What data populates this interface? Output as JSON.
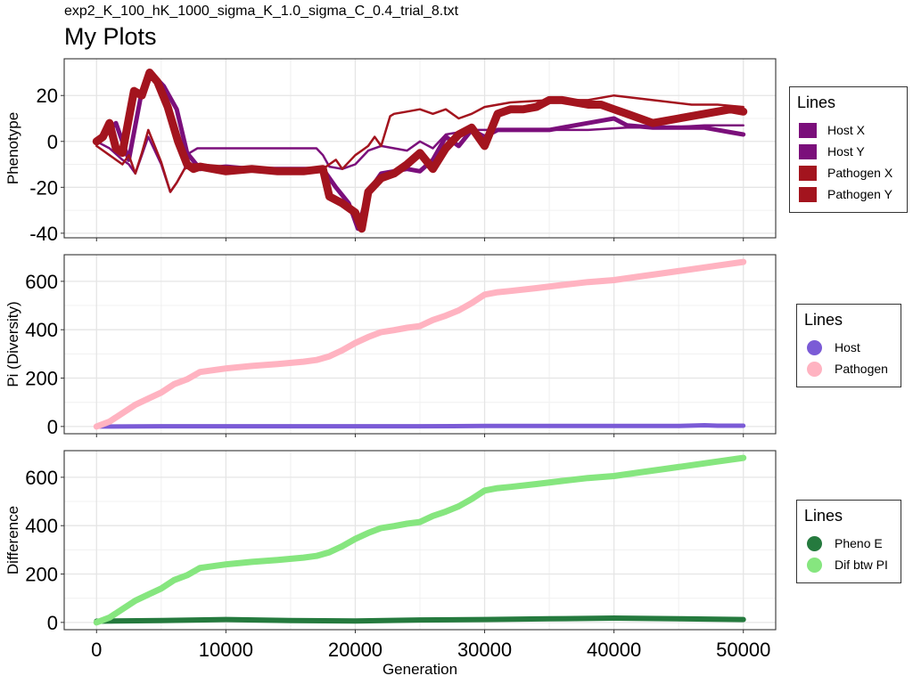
{
  "header": {
    "filename": "exp2_K_100_hK_1000_sigma_K_1.0_sigma_C_0.4_trial_8.txt",
    "title": "My Plots"
  },
  "chart_data": [
    {
      "type": "line",
      "ylabel": "Phenotype",
      "xlabel": "",
      "xlim": [
        -2500,
        52500
      ],
      "ylim": [
        -42,
        36
      ],
      "yticks": [
        -40,
        -20,
        0,
        20
      ],
      "xticks": [
        0,
        10000,
        20000,
        30000,
        40000,
        50000
      ],
      "grid": true,
      "legend": {
        "title": "Lines",
        "position": "right"
      },
      "series": [
        {
          "name": "Host X",
          "color": "#7b0f7b",
          "width": 5,
          "x": [
            0,
            700,
            1500,
            2500,
            3500,
            4200,
            5200,
            6200,
            7000,
            8000,
            10000,
            12000,
            14000,
            16000,
            17500,
            18500,
            19500,
            20200,
            21000,
            22000,
            23000,
            24000,
            25000,
            26000,
            27000,
            28000,
            29000,
            30000,
            31000,
            33000,
            35000,
            37000,
            39000,
            40000,
            41000,
            43000,
            45000,
            46000,
            47000,
            48000,
            49000,
            50000
          ],
          "y": [
            0,
            3,
            8,
            -8,
            22,
            30,
            24,
            14,
            -5,
            -12,
            -11,
            -12,
            -12,
            -12,
            -12,
            -20,
            -27,
            -38,
            -22,
            -14,
            -13,
            -12,
            -13,
            -8,
            2,
            -2,
            5,
            2,
            5,
            5,
            5,
            7,
            9,
            10,
            7,
            6,
            6,
            6,
            6,
            5,
            4,
            3
          ]
        },
        {
          "name": "Host Y",
          "color": "#7b0f7b",
          "width": 2.5,
          "x": [
            0,
            1000,
            2000,
            2500,
            3000,
            3500,
            4000,
            5000,
            5700,
            6200,
            6800,
            7200,
            7800,
            8000,
            10000,
            13000,
            17000,
            17500,
            18000,
            19000,
            20000,
            21000,
            22000,
            23000,
            24000,
            25000,
            26000,
            27000,
            28000,
            29000,
            30000,
            32000,
            35000,
            38000,
            41000,
            44000,
            47000,
            50000
          ],
          "y": [
            0,
            -3,
            -8,
            -10,
            -14,
            -6,
            2,
            -10,
            -22,
            -18,
            -12,
            -5,
            -3,
            -3,
            -3,
            -3,
            -3,
            -6,
            -11,
            -12,
            -10,
            -4,
            -2,
            -3,
            -4,
            0,
            -3,
            3,
            4,
            5,
            5,
            5,
            5,
            5,
            6,
            6,
            7,
            7
          ]
        },
        {
          "name": "Pathogen X",
          "color": "#a3141e",
          "width": 9,
          "x": [
            0,
            500,
            1000,
            1500,
            2000,
            2500,
            2900,
            3500,
            4100,
            4700,
            5500,
            6300,
            7000,
            7500,
            8000,
            10000,
            12000,
            14000,
            16000,
            17500,
            18000,
            19000,
            20000,
            20500,
            21000,
            22000,
            23000,
            24000,
            25000,
            26000,
            27000,
            28000,
            29000,
            30000,
            31000,
            32000,
            33000,
            34000,
            35000,
            36000,
            37000,
            38000,
            39000,
            40000,
            41000,
            42000,
            43000,
            45000,
            47000,
            49000,
            50000
          ],
          "y": [
            0,
            2,
            8,
            -3,
            -5,
            10,
            22,
            20,
            30,
            26,
            15,
            0,
            -10,
            -12,
            -11,
            -13,
            -12,
            -13,
            -13,
            -12,
            -24,
            -27,
            -31,
            -38,
            -22,
            -16,
            -14,
            -10,
            -5,
            -12,
            -3,
            3,
            6,
            -2,
            12,
            14,
            14,
            15,
            18,
            18,
            17,
            16,
            16,
            14,
            12,
            10,
            8,
            10,
            12,
            14,
            13
          ]
        },
        {
          "name": "Pathogen Y",
          "color": "#a3141e",
          "width": 2.5,
          "x": [
            0,
            1000,
            2000,
            2500,
            3000,
            3500,
            4000,
            5000,
            5700,
            6200,
            6800,
            7500,
            8000,
            10000,
            14000,
            17500,
            18500,
            19000,
            20000,
            20500,
            21000,
            21500,
            22000,
            22700,
            23000,
            24000,
            25000,
            26000,
            27000,
            28000,
            29000,
            30000,
            32000,
            35000,
            38000,
            40000,
            43000,
            46000,
            48000,
            50000
          ],
          "y": [
            -2,
            -6,
            -10,
            -6,
            -14,
            -5,
            5,
            -9,
            -22,
            -18,
            -12,
            -10,
            -10,
            -11,
            -12,
            -12,
            -8,
            -12,
            -6,
            -4,
            -2,
            2,
            -2,
            11,
            12,
            13,
            14,
            12,
            14,
            10,
            12,
            15,
            17,
            18,
            18,
            20,
            18,
            16,
            16,
            15
          ]
        }
      ]
    },
    {
      "type": "line",
      "ylabel": "Pi (Diversity)",
      "xlabel": "",
      "xlim": [
        -2500,
        52500
      ],
      "ylim": [
        -30,
        710
      ],
      "yticks": [
        0,
        200,
        400,
        600
      ],
      "xticks": [
        0,
        10000,
        20000,
        30000,
        40000,
        50000
      ],
      "grid": true,
      "legend": {
        "title": "Lines",
        "position": "right"
      },
      "series": [
        {
          "name": "Host",
          "color": "#7b5bd6",
          "width": 5,
          "x": [
            0,
            5000,
            10000,
            15000,
            20000,
            25000,
            30000,
            35000,
            40000,
            45000,
            47000,
            48000,
            50000
          ],
          "y": [
            0,
            1,
            1,
            1,
            1,
            1,
            2,
            2,
            2,
            2,
            5,
            3,
            3
          ]
        },
        {
          "name": "Pathogen",
          "color": "#ffb3c1",
          "width": 7,
          "x": [
            0,
            1000,
            2000,
            3000,
            4000,
            5000,
            6000,
            7000,
            8000,
            10000,
            12000,
            14000,
            16000,
            17000,
            18000,
            19000,
            20000,
            21000,
            22000,
            23000,
            24000,
            25000,
            26000,
            27000,
            28000,
            29000,
            30000,
            31000,
            32000,
            34000,
            36000,
            38000,
            40000,
            42000,
            44000,
            46000,
            48000,
            50000
          ],
          "y": [
            0,
            20,
            55,
            90,
            115,
            140,
            175,
            195,
            225,
            240,
            250,
            258,
            268,
            275,
            290,
            315,
            345,
            370,
            390,
            398,
            408,
            415,
            440,
            458,
            480,
            510,
            545,
            555,
            560,
            572,
            585,
            597,
            605,
            620,
            635,
            650,
            665,
            680
          ]
        }
      ]
    },
    {
      "type": "line",
      "ylabel": "Difference",
      "xlabel": "Generation",
      "xlim": [
        -2500,
        52500
      ],
      "ylim": [
        -30,
        710
      ],
      "yticks": [
        0,
        200,
        400,
        600
      ],
      "xticks": [
        0,
        10000,
        20000,
        30000,
        40000,
        50000
      ],
      "xtick_labels": [
        "0",
        "10000",
        "20000",
        "30000",
        "40000",
        "50000"
      ],
      "grid": true,
      "legend": {
        "title": "Lines",
        "position": "right"
      },
      "series": [
        {
          "name": "Pheno E",
          "color": "#257a3e",
          "width": 6,
          "x": [
            0,
            5000,
            10000,
            15000,
            20000,
            25000,
            30000,
            35000,
            40000,
            45000,
            50000
          ],
          "y": [
            5,
            8,
            12,
            8,
            6,
            10,
            12,
            15,
            18,
            15,
            12
          ]
        },
        {
          "name": "Dif btw PI",
          "color": "#86e67f",
          "width": 7,
          "x": [
            0,
            1000,
            2000,
            3000,
            4000,
            5000,
            6000,
            7000,
            8000,
            10000,
            12000,
            14000,
            16000,
            17000,
            18000,
            19000,
            20000,
            21000,
            22000,
            23000,
            24000,
            25000,
            26000,
            27000,
            28000,
            29000,
            30000,
            31000,
            32000,
            34000,
            36000,
            38000,
            40000,
            42000,
            44000,
            46000,
            48000,
            50000
          ],
          "y": [
            0,
            20,
            55,
            90,
            115,
            140,
            175,
            195,
            225,
            240,
            250,
            258,
            268,
            275,
            290,
            315,
            345,
            370,
            390,
            398,
            408,
            415,
            440,
            458,
            480,
            510,
            545,
            555,
            560,
            572,
            585,
            597,
            605,
            620,
            635,
            650,
            665,
            680
          ]
        }
      ]
    }
  ],
  "legends": [
    {
      "title": "Lines",
      "key": "square",
      "items": [
        {
          "label": "Host X",
          "color": "#7b0f7b"
        },
        {
          "label": "Host Y",
          "color": "#7b0f7b"
        },
        {
          "label": "Pathogen X",
          "color": "#a3141e"
        },
        {
          "label": "Pathogen Y",
          "color": "#a3141e"
        }
      ]
    },
    {
      "title": "Lines",
      "key": "dot",
      "items": [
        {
          "label": "Host",
          "color": "#7b5bd6"
        },
        {
          "label": "Pathogen",
          "color": "#ffb3c1"
        }
      ]
    },
    {
      "title": "Lines",
      "key": "dot",
      "items": [
        {
          "label": "Pheno E",
          "color": "#257a3e"
        },
        {
          "label": "Dif btw PI",
          "color": "#86e67f"
        }
      ]
    }
  ]
}
